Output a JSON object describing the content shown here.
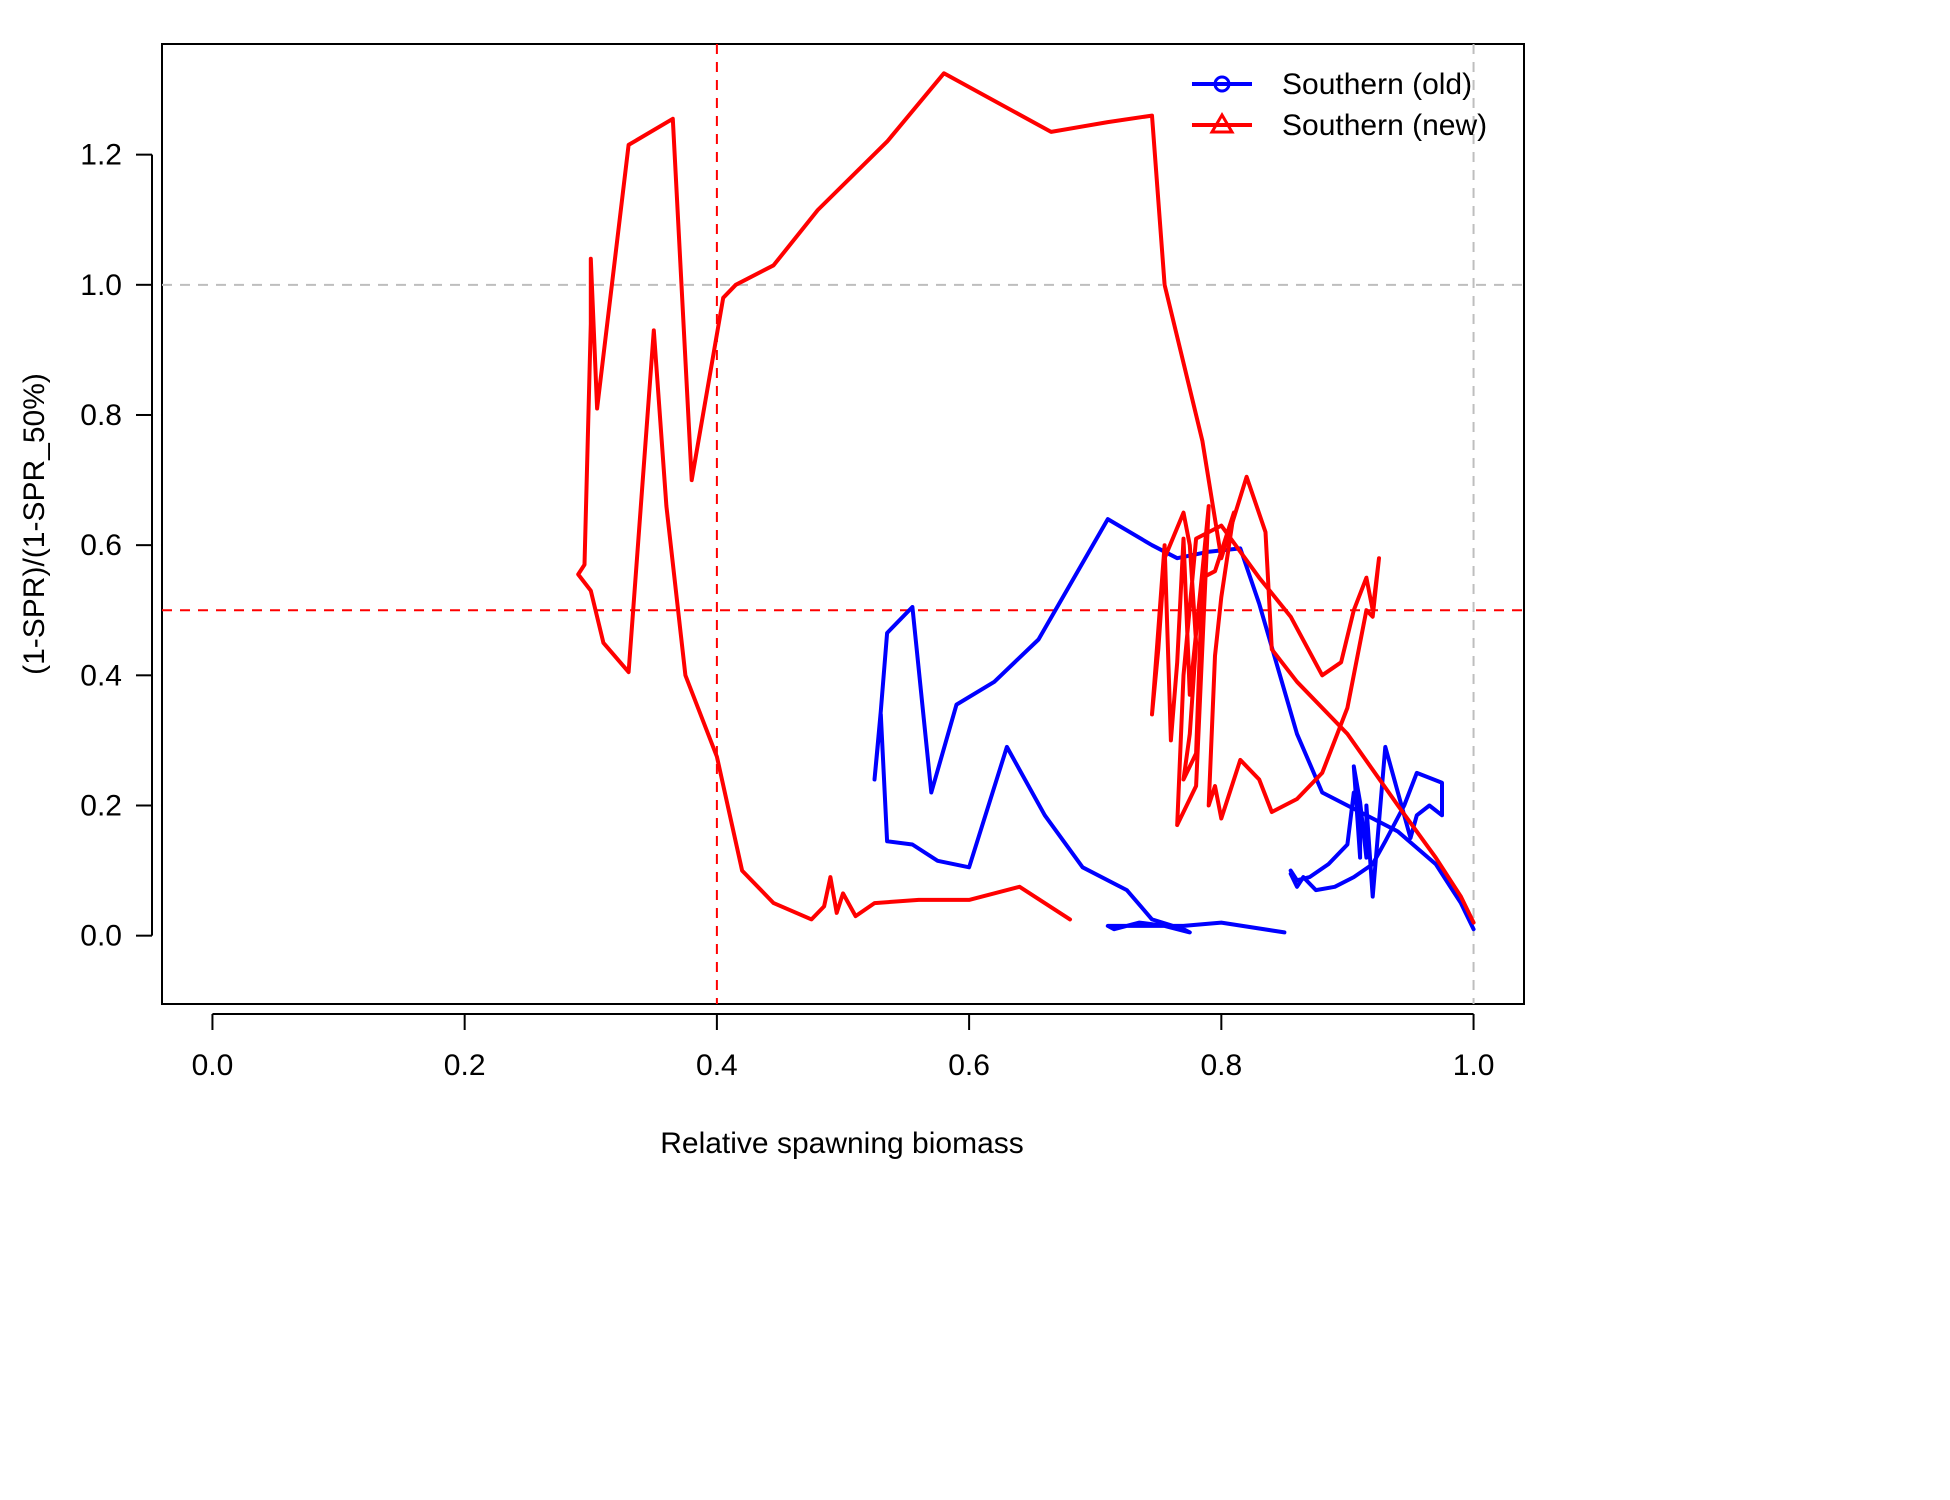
{
  "chart_data": {
    "type": "line",
    "xlabel": "Relative spawning biomass",
    "ylabel": "(1-SPR)/(1-SPR_50%)",
    "xlim": [
      -0.04,
      1.04
    ],
    "ylim": [
      -0.105,
      1.37
    ],
    "x_ticks": [
      "0.0",
      "0.2",
      "0.4",
      "0.6",
      "0.8",
      "1.0"
    ],
    "y_ticks": [
      "0.0",
      "0.2",
      "0.4",
      "0.6",
      "0.8",
      "1.0",
      "1.2"
    ],
    "reference_lines": [
      {
        "axis": "x",
        "value": 0.4,
        "color": "#ff0000",
        "style": "dashed"
      },
      {
        "axis": "x",
        "value": 1.0,
        "color": "#bebebe",
        "style": "dashed"
      },
      {
        "axis": "y",
        "value": 0.5,
        "color": "#ff0000",
        "style": "dashed"
      },
      {
        "axis": "y",
        "value": 1.0,
        "color": "#bebebe",
        "style": "dashed"
      }
    ],
    "grid": false,
    "legend": {
      "position": "top-right"
    },
    "series": [
      {
        "name": "Southern (old)",
        "color": "#0000ff",
        "marker": "circle",
        "points": [
          [
            1.0,
            0.01
          ],
          [
            0.99,
            0.05
          ],
          [
            0.97,
            0.11
          ],
          [
            0.94,
            0.16
          ],
          [
            0.91,
            0.19
          ],
          [
            0.88,
            0.22
          ],
          [
            0.86,
            0.31
          ],
          [
            0.83,
            0.51
          ],
          [
            0.815,
            0.595
          ],
          [
            0.79,
            0.59
          ],
          [
            0.765,
            0.58
          ],
          [
            0.745,
            0.6
          ],
          [
            0.71,
            0.64
          ],
          [
            0.655,
            0.455
          ],
          [
            0.62,
            0.39
          ],
          [
            0.59,
            0.355
          ],
          [
            0.57,
            0.22
          ],
          [
            0.555,
            0.505
          ],
          [
            0.535,
            0.465
          ],
          [
            0.53,
            0.345
          ],
          [
            0.525,
            0.24
          ],
          [
            0.53,
            0.34
          ],
          [
            0.535,
            0.145
          ],
          [
            0.555,
            0.14
          ],
          [
            0.575,
            0.115
          ],
          [
            0.6,
            0.105
          ],
          [
            0.63,
            0.29
          ],
          [
            0.66,
            0.185
          ],
          [
            0.69,
            0.105
          ],
          [
            0.725,
            0.07
          ],
          [
            0.745,
            0.025
          ],
          [
            0.77,
            0.01
          ],
          [
            0.775,
            0.005
          ],
          [
            0.755,
            0.015
          ],
          [
            0.735,
            0.02
          ],
          [
            0.715,
            0.01
          ],
          [
            0.71,
            0.015
          ],
          [
            0.73,
            0.015
          ],
          [
            0.77,
            0.015
          ],
          [
            0.8,
            0.02
          ],
          [
            0.85,
            0.005
          ]
        ]
      },
      {
        "name": "Southern (old)",
        "color": "#0000ff",
        "marker": "circle",
        "points": [
          [
            0.855,
            0.095
          ],
          [
            0.86,
            0.075
          ],
          [
            0.865,
            0.09
          ],
          [
            0.875,
            0.07
          ],
          [
            0.89,
            0.075
          ],
          [
            0.905,
            0.09
          ],
          [
            0.92,
            0.11
          ],
          [
            0.93,
            0.145
          ],
          [
            0.945,
            0.2
          ],
          [
            0.955,
            0.25
          ],
          [
            0.975,
            0.235
          ],
          [
            0.975,
            0.185
          ],
          [
            0.965,
            0.2
          ],
          [
            0.955,
            0.185
          ],
          [
            0.95,
            0.15
          ],
          [
            0.93,
            0.29
          ],
          [
            0.92,
            0.06
          ],
          [
            0.915,
            0.2
          ],
          [
            0.915,
            0.12
          ],
          [
            0.91,
            0.205
          ],
          [
            0.905,
            0.26
          ],
          [
            0.91,
            0.12
          ],
          [
            0.91,
            0.19
          ],
          [
            0.905,
            0.22
          ],
          [
            0.9,
            0.14
          ],
          [
            0.885,
            0.11
          ],
          [
            0.87,
            0.09
          ],
          [
            0.86,
            0.085
          ],
          [
            0.855,
            0.1
          ]
        ]
      },
      {
        "name": "Southern (new)",
        "color": "#ff0000",
        "marker": "triangle",
        "points": [
          [
            1.0,
            0.02
          ],
          [
            0.99,
            0.06
          ],
          [
            0.97,
            0.12
          ],
          [
            0.94,
            0.2
          ],
          [
            0.9,
            0.31
          ],
          [
            0.86,
            0.39
          ],
          [
            0.84,
            0.44
          ],
          [
            0.835,
            0.62
          ],
          [
            0.82,
            0.705
          ],
          [
            0.8,
            0.58
          ],
          [
            0.785,
            0.76
          ],
          [
            0.755,
            1.0
          ],
          [
            0.745,
            1.26
          ],
          [
            0.71,
            1.25
          ],
          [
            0.665,
            1.235
          ],
          [
            0.58,
            1.325
          ],
          [
            0.535,
            1.22
          ],
          [
            0.48,
            1.115
          ],
          [
            0.445,
            1.03
          ],
          [
            0.415,
            1.0
          ],
          [
            0.405,
            0.98
          ],
          [
            0.38,
            0.7
          ],
          [
            0.365,
            1.255
          ],
          [
            0.33,
            1.215
          ],
          [
            0.305,
            0.81
          ],
          [
            0.3,
            1.04
          ],
          [
            0.3,
            0.94
          ],
          [
            0.295,
            0.57
          ],
          [
            0.29,
            0.555
          ],
          [
            0.3,
            0.53
          ],
          [
            0.31,
            0.45
          ],
          [
            0.33,
            0.405
          ],
          [
            0.35,
            0.93
          ],
          [
            0.36,
            0.66
          ],
          [
            0.375,
            0.4
          ],
          [
            0.4,
            0.275
          ],
          [
            0.42,
            0.1
          ],
          [
            0.445,
            0.05
          ],
          [
            0.475,
            0.025
          ],
          [
            0.485,
            0.045
          ],
          [
            0.49,
            0.09
          ],
          [
            0.495,
            0.035
          ],
          [
            0.5,
            0.065
          ],
          [
            0.51,
            0.03
          ],
          [
            0.525,
            0.05
          ],
          [
            0.56,
            0.055
          ],
          [
            0.6,
            0.055
          ],
          [
            0.64,
            0.075
          ],
          [
            0.68,
            0.025
          ]
        ]
      },
      {
        "name": "Southern (new)",
        "color": "#ff0000",
        "marker": "triangle",
        "points": [
          [
            0.765,
            0.17
          ],
          [
            0.78,
            0.23
          ],
          [
            0.79,
            0.66
          ],
          [
            0.785,
            0.56
          ],
          [
            0.775,
            0.37
          ],
          [
            0.77,
            0.61
          ],
          [
            0.765,
            0.42
          ],
          [
            0.76,
            0.3
          ],
          [
            0.755,
            0.6
          ],
          [
            0.75,
            0.47
          ],
          [
            0.745,
            0.34
          ],
          [
            0.75,
            0.44
          ],
          [
            0.755,
            0.58
          ],
          [
            0.77,
            0.65
          ],
          [
            0.775,
            0.6
          ],
          [
            0.78,
            0.45
          ],
          [
            0.775,
            0.31
          ],
          [
            0.77,
            0.24
          ],
          [
            0.78,
            0.28
          ],
          [
            0.785,
            0.55
          ],
          [
            0.795,
            0.56
          ],
          [
            0.81,
            0.65
          ],
          [
            0.8,
            0.52
          ],
          [
            0.795,
            0.43
          ],
          [
            0.79,
            0.2
          ],
          [
            0.795,
            0.23
          ],
          [
            0.8,
            0.18
          ],
          [
            0.815,
            0.27
          ],
          [
            0.83,
            0.24
          ],
          [
            0.84,
            0.19
          ],
          [
            0.86,
            0.21
          ],
          [
            0.88,
            0.25
          ],
          [
            0.9,
            0.35
          ],
          [
            0.915,
            0.5
          ],
          [
            0.92,
            0.49
          ],
          [
            0.925,
            0.58
          ],
          [
            0.92,
            0.5
          ],
          [
            0.915,
            0.55
          ],
          [
            0.905,
            0.5
          ],
          [
            0.895,
            0.42
          ],
          [
            0.88,
            0.4
          ],
          [
            0.855,
            0.49
          ],
          [
            0.83,
            0.55
          ],
          [
            0.8,
            0.63
          ],
          [
            0.78,
            0.61
          ],
          [
            0.77,
            0.4
          ],
          [
            0.765,
            0.17
          ]
        ]
      }
    ]
  }
}
